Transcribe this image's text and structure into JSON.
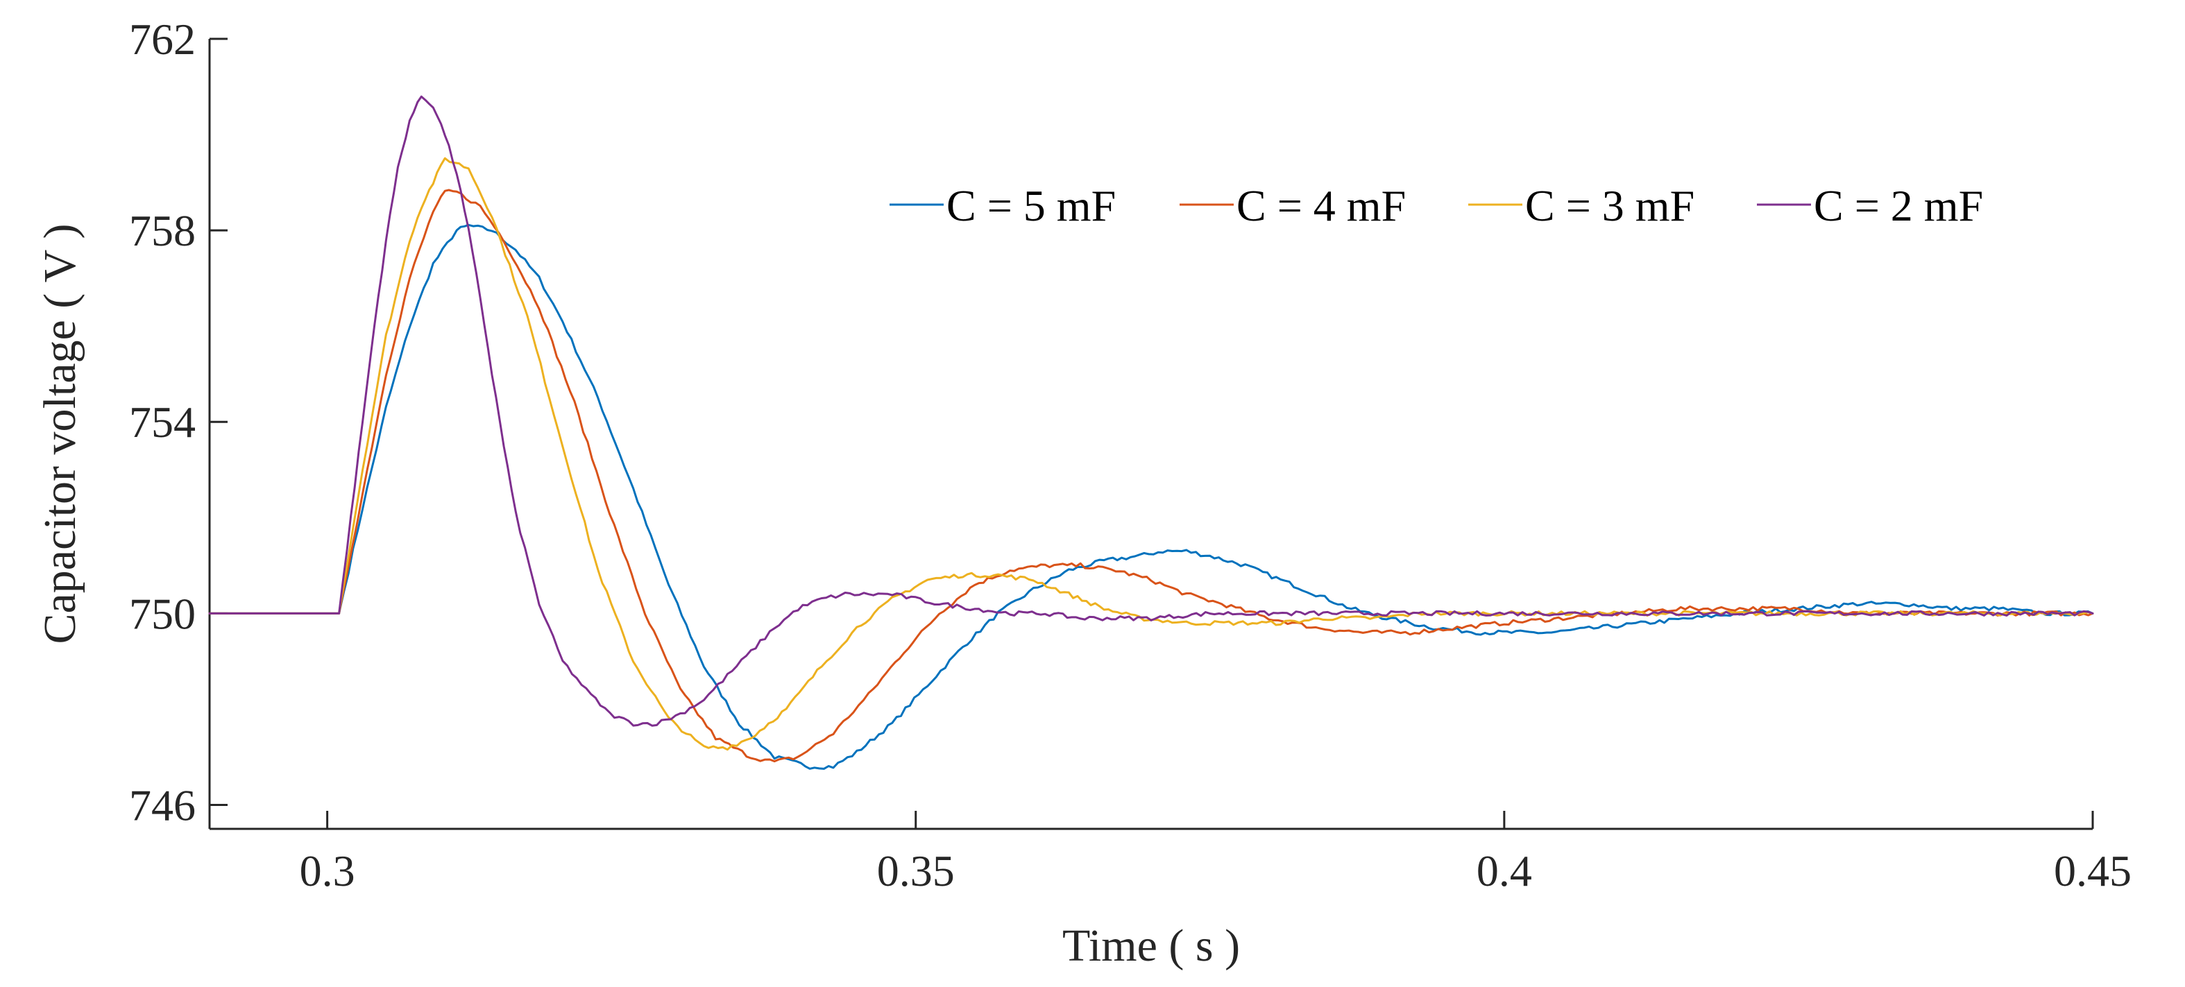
{
  "chart_data": {
    "type": "line",
    "title": "",
    "xlabel": "Time ( s )",
    "ylabel": "Capacitor voltage ( V )",
    "xlim": [
      0.29,
      0.45
    ],
    "ylim": [
      745.5,
      762
    ],
    "xticks": [
      0.3,
      0.35,
      0.4,
      0.45
    ],
    "xtick_labels": [
      "0.3",
      "0.35",
      "0.4",
      "0.45"
    ],
    "yticks": [
      746,
      750,
      754,
      758,
      762
    ],
    "ytick_labels": [
      "746",
      "750",
      "754",
      "758",
      "762"
    ],
    "grid": false,
    "legend_position": "top-right",
    "series": [
      {
        "name": "C = 5 mF",
        "color": "#0072BD",
        "x": [
          0.29,
          0.3,
          0.301,
          0.303,
          0.305,
          0.307,
          0.309,
          0.311,
          0.312,
          0.314,
          0.316,
          0.318,
          0.32,
          0.323,
          0.326,
          0.329,
          0.332,
          0.335,
          0.338,
          0.341,
          0.343,
          0.345,
          0.348,
          0.351,
          0.354,
          0.357,
          0.36,
          0.363,
          0.366,
          0.369,
          0.371,
          0.373,
          0.375,
          0.378,
          0.381,
          0.384,
          0.387,
          0.39,
          0.394,
          0.398,
          0.401,
          0.404,
          0.408,
          0.412,
          0.416,
          0.42,
          0.425,
          0.43,
          0.434,
          0.438,
          0.442,
          0.446,
          0.45
        ],
        "y": [
          750.0,
          750.0,
          750.0,
          752.2,
          754.3,
          756.0,
          757.3,
          758.0,
          758.1,
          758.0,
          757.6,
          757.0,
          756.1,
          754.5,
          752.6,
          750.6,
          748.9,
          747.7,
          747.0,
          746.8,
          746.8,
          747.1,
          747.7,
          748.5,
          749.3,
          750.0,
          750.5,
          750.9,
          751.1,
          751.2,
          751.3,
          751.3,
          751.2,
          751.0,
          750.7,
          750.4,
          750.1,
          749.9,
          749.7,
          749.6,
          749.6,
          749.6,
          749.7,
          749.8,
          749.9,
          750.0,
          750.1,
          750.2,
          750.2,
          750.1,
          750.1,
          750.0,
          750.0
        ]
      },
      {
        "name": "C = 4 mF",
        "color": "#D95319",
        "x": [
          0.29,
          0.3,
          0.301,
          0.303,
          0.305,
          0.307,
          0.309,
          0.31,
          0.311,
          0.313,
          0.315,
          0.318,
          0.321,
          0.324,
          0.327,
          0.33,
          0.333,
          0.336,
          0.338,
          0.34,
          0.343,
          0.346,
          0.349,
          0.352,
          0.355,
          0.358,
          0.361,
          0.364,
          0.367,
          0.37,
          0.373,
          0.376,
          0.38,
          0.384,
          0.388,
          0.392,
          0.396,
          0.4,
          0.405,
          0.41,
          0.415,
          0.42,
          0.425,
          0.43,
          0.435,
          0.44,
          0.445,
          0.45
        ],
        "y": [
          750.0,
          750.0,
          750.0,
          752.5,
          755.0,
          757.0,
          758.4,
          758.8,
          758.8,
          758.5,
          757.8,
          756.4,
          754.4,
          752.1,
          750.0,
          748.4,
          747.4,
          747.0,
          746.9,
          747.0,
          747.5,
          748.3,
          749.2,
          750.0,
          750.6,
          750.9,
          751.0,
          751.0,
          750.9,
          750.7,
          750.4,
          750.2,
          749.9,
          749.7,
          749.6,
          749.6,
          749.7,
          749.8,
          749.9,
          750.0,
          750.1,
          750.1,
          750.1,
          750.0,
          750.0,
          750.0,
          750.0,
          750.0
        ]
      },
      {
        "name": "C = 3 mF",
        "color": "#EDB120",
        "x": [
          0.29,
          0.3,
          0.301,
          0.303,
          0.305,
          0.307,
          0.308,
          0.309,
          0.31,
          0.312,
          0.314,
          0.317,
          0.32,
          0.323,
          0.326,
          0.329,
          0.332,
          0.334,
          0.336,
          0.339,
          0.342,
          0.345,
          0.348,
          0.351,
          0.354,
          0.357,
          0.36,
          0.363,
          0.366,
          0.369,
          0.373,
          0.377,
          0.381,
          0.385,
          0.389,
          0.393,
          0.397,
          0.401,
          0.406,
          0.411,
          0.416,
          0.421,
          0.426,
          0.431,
          0.436,
          0.441,
          0.446,
          0.45
        ],
        "y": [
          750.0,
          750.0,
          750.0,
          753.0,
          755.8,
          757.8,
          758.5,
          759.0,
          759.5,
          759.3,
          758.3,
          756.2,
          753.5,
          750.9,
          749.0,
          747.8,
          747.2,
          747.2,
          747.4,
          748.0,
          748.9,
          749.7,
          750.3,
          750.7,
          750.8,
          750.8,
          750.7,
          750.4,
          750.1,
          749.9,
          749.8,
          749.8,
          749.8,
          749.9,
          749.9,
          750.0,
          750.0,
          750.0,
          750.0,
          750.0,
          750.0,
          750.0,
          750.0,
          750.0,
          750.0,
          750.0,
          750.0,
          750.0
        ]
      },
      {
        "name": "C = 2 mF",
        "color": "#7E2F8E",
        "x": [
          0.29,
          0.3,
          0.301,
          0.302,
          0.303,
          0.304,
          0.305,
          0.306,
          0.307,
          0.308,
          0.309,
          0.31,
          0.311,
          0.312,
          0.313,
          0.314,
          0.315,
          0.316,
          0.318,
          0.32,
          0.322,
          0.324,
          0.326,
          0.328,
          0.33,
          0.332,
          0.334,
          0.336,
          0.338,
          0.34,
          0.342,
          0.344,
          0.346,
          0.348,
          0.35,
          0.352,
          0.355,
          0.358,
          0.361,
          0.364,
          0.367,
          0.37,
          0.375,
          0.38,
          0.385,
          0.39,
          0.395,
          0.4,
          0.405,
          0.41,
          0.415,
          0.42,
          0.425,
          0.43,
          0.435,
          0.44,
          0.445,
          0.45
        ],
        "y": [
          750.0,
          750.0,
          750.0,
          752.0,
          754.0,
          756.0,
          757.8,
          759.3,
          760.3,
          760.8,
          760.6,
          760.0,
          759.2,
          758.0,
          756.6,
          755.0,
          753.5,
          752.1,
          750.2,
          749.0,
          748.4,
          747.9,
          747.7,
          747.7,
          747.9,
          748.2,
          748.7,
          749.2,
          749.7,
          750.1,
          750.3,
          750.4,
          750.4,
          750.4,
          750.3,
          750.2,
          750.1,
          750.0,
          750.0,
          749.9,
          749.9,
          749.9,
          750.0,
          750.0,
          750.0,
          750.0,
          750.0,
          750.0,
          750.0,
          750.0,
          750.0,
          750.0,
          750.0,
          750.0,
          750.0,
          750.0,
          750.0,
          750.0
        ]
      }
    ]
  }
}
